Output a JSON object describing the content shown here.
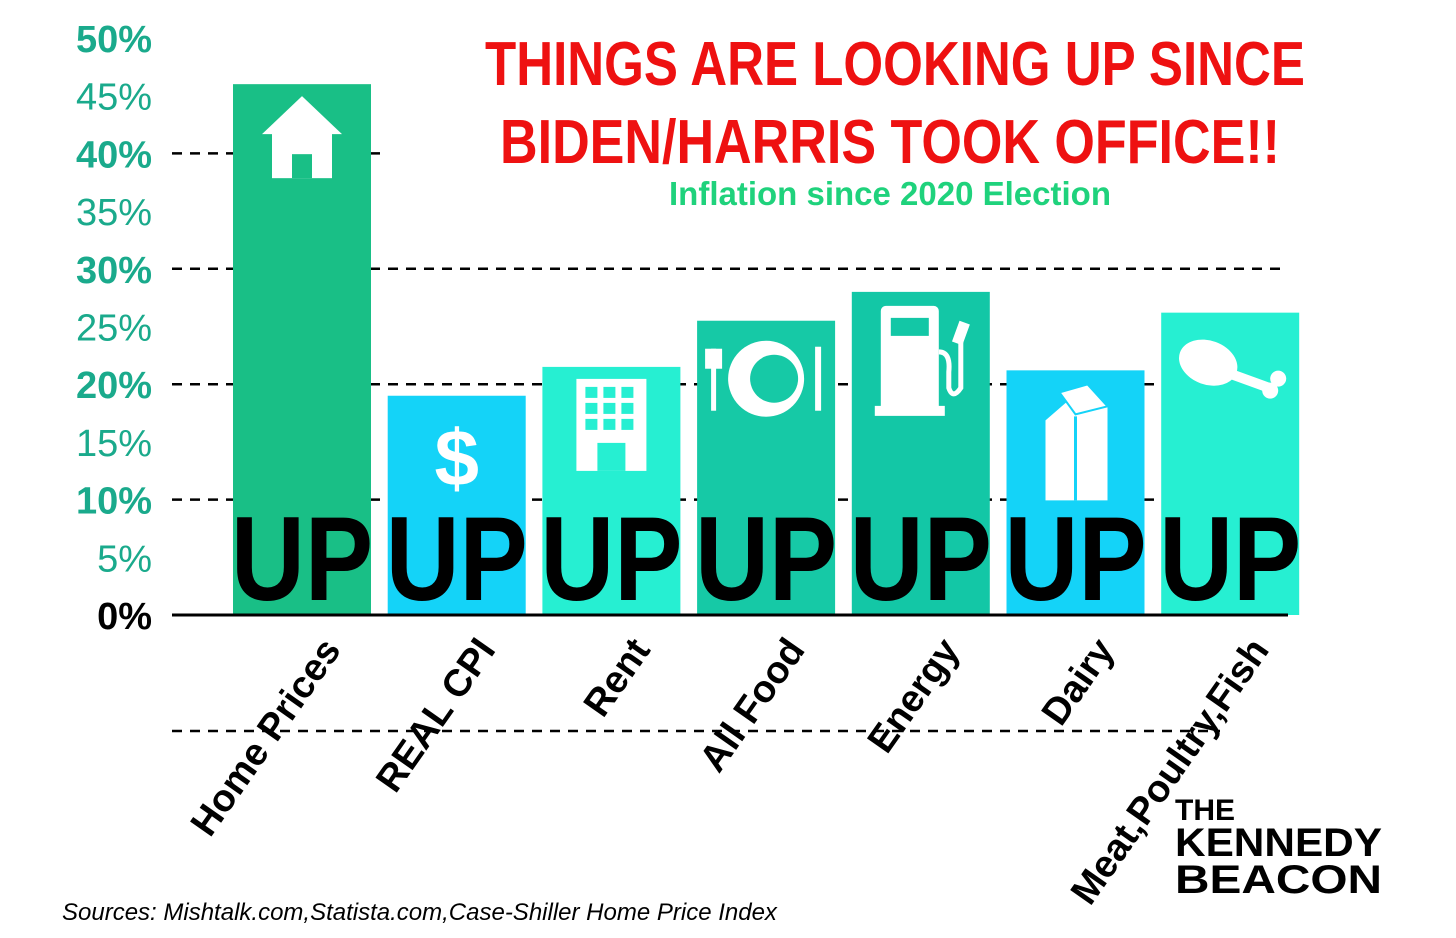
{
  "chart_data": {
    "type": "bar",
    "title": [
      "THINGS ARE LOOKING UP SINCE",
      "BIDEN/HARRIS TOOK OFFICE!!"
    ],
    "subtitle": "Inflation since 2020 Election",
    "categories": [
      "Home Prices",
      "REAL CPI",
      "Rent",
      "All Food",
      "Energy",
      "Dairy",
      "Meat,Poultry,Fish"
    ],
    "values": [
      46,
      19,
      21.5,
      25.5,
      28,
      21.2,
      26.2
    ],
    "bar_label": "UP",
    "icons": [
      "house-icon",
      "dollar-icon",
      "building-icon",
      "plate-icon",
      "fuel-pump-icon",
      "milk-carton-icon",
      "drumstick-icon"
    ],
    "bar_colors": [
      "#19bf86",
      "#14d3f8",
      "#26efd2",
      "#16c9a6",
      "#13c7a6",
      "#14d3f8",
      "#26efd2"
    ],
    "ylim": [
      0,
      50
    ],
    "yticks": [
      "0%",
      "5%",
      "10%",
      "15%",
      "20%",
      "25%",
      "30%",
      "35%",
      "40%",
      "45%",
      "50%"
    ],
    "bold_ticks": [
      "0%",
      "10%",
      "20%",
      "30%",
      "40%",
      "50%"
    ],
    "dashed_gridlines_at": [
      10,
      20,
      30,
      40
    ],
    "xlabel": "",
    "ylabel": "",
    "source": "Sources: Mishtalk.com,Statista.com,Case-Shiller Home Price Index",
    "logo": [
      "THE",
      "KENNEDY",
      "BEACON"
    ],
    "colors": {
      "tick": "#1aaa8c",
      "zero_tick": "#000000",
      "title": "#ee1111",
      "subtitle": "#1fd27c"
    }
  }
}
